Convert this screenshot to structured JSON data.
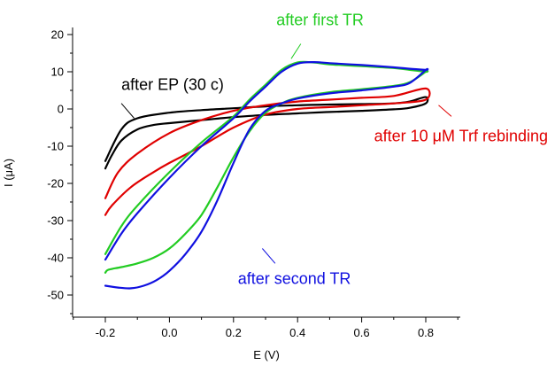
{
  "chart_data": {
    "type": "line",
    "xlabel": "E (V)",
    "ylabel": "I (μA)",
    "xlim": [
      -0.3,
      0.9
    ],
    "ylim": [
      -54,
      21
    ],
    "x_ticks": [
      "-0.2",
      "0.0",
      "0.2",
      "0.4",
      "0.6",
      "0.8"
    ],
    "x_tick_values": [
      -0.2,
      0.0,
      0.2,
      0.4,
      0.6,
      0.8
    ],
    "y_ticks": [
      "20",
      "10",
      "0",
      "-10",
      "-20",
      "-30",
      "-40",
      "-50"
    ],
    "y_tick_values": [
      20,
      10,
      0,
      -10,
      -20,
      -30,
      -40,
      -50
    ],
    "grid": false,
    "series": [
      {
        "name": "after EP (30 c)",
        "color": "#000000",
        "x": [
          -0.2,
          -0.18,
          -0.15,
          -0.1,
          -0.05,
          0.0,
          0.1,
          0.2,
          0.3,
          0.4,
          0.5,
          0.6,
          0.7,
          0.75,
          0.8,
          0.8,
          0.75,
          0.7,
          0.6,
          0.5,
          0.4,
          0.3,
          0.2,
          0.1,
          0.0,
          -0.1,
          -0.15,
          -0.2
        ],
        "y": [
          -16.0,
          -12.5,
          -8.5,
          -5.5,
          -4.3,
          -3.8,
          -3.0,
          -2.2,
          -1.6,
          -1.2,
          -0.8,
          -0.5,
          -0.1,
          0.3,
          1.5,
          3.2,
          2.0,
          1.5,
          1.3,
          1.2,
          1.0,
          0.7,
          0.2,
          -0.3,
          -1.0,
          -2.5,
          -5.5,
          -14.0
        ]
      },
      {
        "name": "after 10 μM Trf rebinding",
        "color": "#e00000",
        "x": [
          -0.2,
          -0.18,
          -0.12,
          -0.05,
          0.0,
          0.1,
          0.2,
          0.3,
          0.4,
          0.5,
          0.6,
          0.7,
          0.8,
          0.8,
          0.7,
          0.6,
          0.5,
          0.4,
          0.3,
          0.2,
          0.1,
          0.0,
          -0.1,
          -0.16,
          -0.2
        ],
        "y": [
          -28.5,
          -26.0,
          -21.0,
          -17.0,
          -14.5,
          -10.0,
          -5.0,
          -1.5,
          0.0,
          0.5,
          1.0,
          1.5,
          2.5,
          5.5,
          3.5,
          3.0,
          2.5,
          2.0,
          1.0,
          -0.5,
          -3.0,
          -6.5,
          -12.0,
          -17.0,
          -24.0
        ]
      },
      {
        "name": "after first TR",
        "color": "#22cc22",
        "x": [
          -0.2,
          -0.19,
          -0.15,
          -0.1,
          -0.05,
          0.0,
          0.05,
          0.1,
          0.15,
          0.2,
          0.25,
          0.3,
          0.35,
          0.4,
          0.5,
          0.6,
          0.7,
          0.75,
          0.8,
          0.8,
          0.75,
          0.7,
          0.6,
          0.5,
          0.45,
          0.4,
          0.35,
          0.3,
          0.25,
          0.2,
          0.1,
          0.0,
          -0.1,
          -0.15,
          -0.2
        ],
        "y": [
          -44.0,
          -43.2,
          -42.5,
          -41.5,
          -40.0,
          -37.5,
          -33.5,
          -28.5,
          -21.0,
          -13.0,
          -6.0,
          -1.0,
          1.5,
          3.0,
          4.5,
          5.3,
          6.2,
          7.2,
          10.0,
          10.0,
          10.5,
          11.0,
          11.5,
          12.0,
          12.5,
          12.5,
          10.5,
          6.5,
          2.5,
          -2.0,
          -9.0,
          -17.0,
          -26.0,
          -31.5,
          -39.0
        ]
      },
      {
        "name": "after second TR",
        "color": "#1010e0",
        "x": [
          -0.2,
          -0.16,
          -0.12,
          -0.08,
          -0.04,
          0.0,
          0.05,
          0.1,
          0.15,
          0.2,
          0.25,
          0.3,
          0.35,
          0.4,
          0.5,
          0.6,
          0.7,
          0.75,
          0.8,
          0.8,
          0.75,
          0.7,
          0.6,
          0.5,
          0.45,
          0.4,
          0.35,
          0.3,
          0.25,
          0.2,
          0.1,
          0.0,
          -0.1,
          -0.15,
          -0.2
        ],
        "y": [
          -47.5,
          -48.0,
          -48.2,
          -47.5,
          -46.0,
          -43.5,
          -39.0,
          -33.0,
          -24.5,
          -14.5,
          -5.5,
          -0.5,
          1.5,
          2.8,
          4.2,
          5.0,
          6.0,
          7.0,
          10.5,
          10.5,
          10.8,
          11.2,
          11.8,
          12.3,
          12.6,
          12.2,
          10.0,
          6.0,
          2.0,
          -2.5,
          -10.0,
          -18.5,
          -28.0,
          -33.5,
          -40.5
        ]
      }
    ],
    "annotations": [
      {
        "text": "after first TR",
        "color": "#22cc22",
        "at": [
          0.47,
          22.5
        ],
        "pointer_from": [
          0.41,
          17.5
        ],
        "pointer_to": [
          0.38,
          13.5
        ]
      },
      {
        "text": "after EP (30 c)",
        "color": "#000000",
        "at": [
          0.01,
          5.1
        ],
        "pointer_from": [
          -0.15,
          1.5
        ],
        "pointer_to": [
          -0.11,
          -2.5
        ]
      },
      {
        "text": "after 10 μM Trf rebinding",
        "color": "#e00000",
        "at": [
          0.91,
          -8.7
        ],
        "pointer_from": [
          0.84,
          1.0
        ],
        "pointer_to": [
          0.88,
          -2.0
        ]
      },
      {
        "text": "after second TR",
        "color": "#1010e0",
        "at": [
          0.39,
          -47.0
        ],
        "pointer_from": [
          0.33,
          -41.5
        ],
        "pointer_to": [
          0.29,
          -37.5
        ]
      }
    ]
  }
}
